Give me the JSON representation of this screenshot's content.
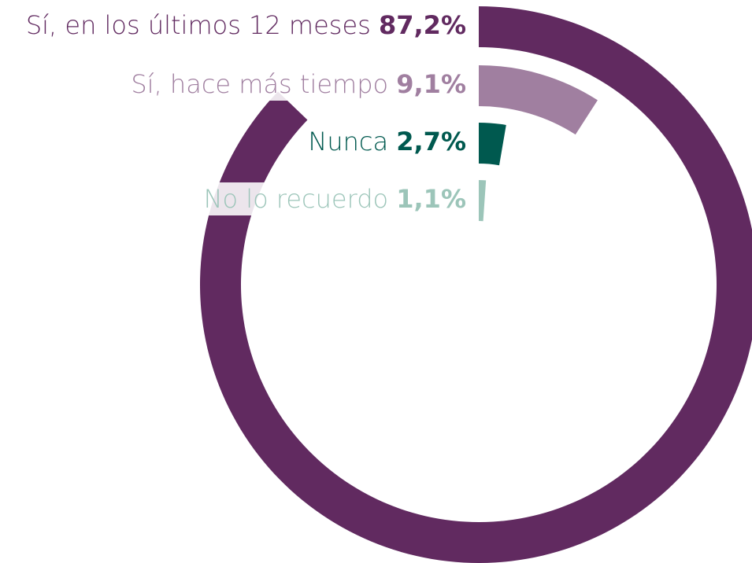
{
  "chart_data": {
    "type": "radial_bar",
    "categories": [
      "Sí, en los últimos 12 meses",
      "Sí, hace más tiempo",
      "Nunca",
      "No lo recuerdo"
    ],
    "values": [
      87.2,
      9.1,
      2.7,
      1.1
    ],
    "value_labels": [
      "87,2%",
      "9,1%",
      "2,7%",
      "1,1%"
    ],
    "colors": [
      "#612a60",
      "#a07fa0",
      "#00594f",
      "#9cc5b9"
    ],
    "ylim": [
      0,
      100
    ]
  }
}
